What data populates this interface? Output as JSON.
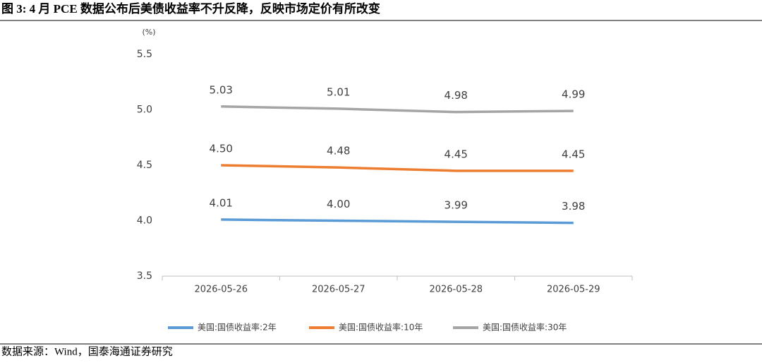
{
  "header": {
    "title": "图 3: 4 月 PCE 数据公布后美债收益率不升反降，反映市场定价有所改变"
  },
  "chart_data": {
    "type": "line",
    "y_label": "(%)",
    "categories": [
      "2026-05-26",
      "2026-05-27",
      "2026-05-28",
      "2026-05-29"
    ],
    "series": [
      {
        "name": "美国:国债收益率:2年",
        "color": "#5b9bd5",
        "values": [
          4.01,
          4.0,
          3.99,
          3.98
        ],
        "value_labels": [
          "4.01",
          "4.00",
          "3.99",
          "3.98"
        ]
      },
      {
        "name": "美国:国债收益率:10年",
        "color": "#ed7d31",
        "values": [
          4.5,
          4.48,
          4.45,
          4.45
        ],
        "value_labels": [
          "4.50",
          "4.48",
          "4.45",
          "4.45"
        ]
      },
      {
        "name": "美国:国债收益率:30年",
        "color": "#a5a5a5",
        "values": [
          5.03,
          5.01,
          4.98,
          4.99
        ],
        "value_labels": [
          "5.03",
          "5.01",
          "4.98",
          "4.99"
        ]
      }
    ],
    "ylim": [
      3.5,
      5.5
    ],
    "yticks": [
      3.5,
      {
        "value": 4,
        "label": "4.0"
      },
      4.5,
      {
        "value": 5,
        "label": "5.0"
      },
      5.5
    ],
    "legend": "bottom"
  },
  "footer": {
    "source": "数据来源：Wind，国泰海通证券研究"
  }
}
